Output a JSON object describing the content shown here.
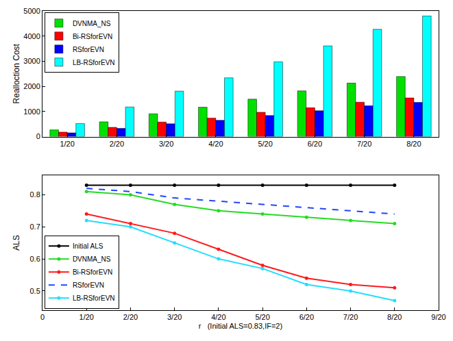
{
  "chart_data": [
    {
      "type": "bar",
      "y_label": "Realloction Cost",
      "categories": [
        "1/20",
        "2/20",
        "3/20",
        "4/20",
        "5/20",
        "6/20",
        "7/20",
        "8/20"
      ],
      "series": [
        {
          "name": "DVNMA_NS",
          "color": "#00e000",
          "values": [
            270,
            590,
            910,
            1170,
            1490,
            1820,
            2130,
            2390
          ]
        },
        {
          "name": "Bi-RSforEVN",
          "color": "#ff0000",
          "values": [
            180,
            370,
            580,
            740,
            970,
            1150,
            1370,
            1540
          ]
        },
        {
          "name": "RSforEVN",
          "color": "#0000ff",
          "values": [
            150,
            330,
            510,
            650,
            840,
            1030,
            1230,
            1360
          ]
        },
        {
          "name": "LB-RSforEVN",
          "color": "#00ffff",
          "values": [
            520,
            1180,
            1810,
            2340,
            2980,
            3610,
            4270,
            4800
          ]
        }
      ],
      "ylim": [
        0,
        5000
      ],
      "yticks": [
        0,
        1000,
        2000,
        3000,
        4000,
        5000
      ],
      "grid": false,
      "legend": "upper left"
    },
    {
      "type": "line",
      "x_label": "r   (Initial ALS=0.83,IF=2)",
      "y_label": "ALS",
      "x": [
        0.05,
        0.1,
        0.15,
        0.2,
        0.25,
        0.3,
        0.35,
        0.4
      ],
      "series": [
        {
          "name": "Initial ALS",
          "color": "#000000",
          "marker": "circle",
          "line_style": "solid",
          "values": [
            0.83,
            0.83,
            0.83,
            0.83,
            0.83,
            0.83,
            0.83,
            0.83
          ]
        },
        {
          "name": "DVNMA_NS",
          "color": "#22dd22",
          "marker": "circle",
          "line_style": "solid",
          "values": [
            0.81,
            0.8,
            0.77,
            0.75,
            0.74,
            0.73,
            0.72,
            0.71
          ]
        },
        {
          "name": "Bi-RSforEVN",
          "color": "#ff1a1a",
          "marker": "circle",
          "line_style": "solid",
          "values": [
            0.74,
            0.71,
            0.68,
            0.63,
            0.58,
            0.54,
            0.52,
            0.51
          ]
        },
        {
          "name": "RSforEVN",
          "color": "#2244ff",
          "marker": "none",
          "line_style": "dash",
          "values": [
            0.82,
            0.81,
            0.79,
            0.78,
            0.77,
            0.76,
            0.75,
            0.74
          ]
        },
        {
          "name": "LB-RSforEVN",
          "color": "#22ddff",
          "marker": "circle",
          "line_style": "solid",
          "values": [
            0.72,
            0.7,
            0.65,
            0.6,
            0.57,
            0.52,
            0.5,
            0.47
          ]
        }
      ],
      "xlim": [
        0,
        0.45
      ],
      "xticks": [
        0,
        {
          "value": 0.05,
          "label": "1/20"
        },
        {
          "value": 0.1,
          "label": "2/20"
        },
        {
          "value": 0.15,
          "label": "3/20"
        },
        {
          "value": 0.2,
          "label": "4/20"
        },
        {
          "value": 0.25,
          "label": "5/20"
        },
        {
          "value": 0.3,
          "label": "6/20"
        },
        {
          "value": 0.35,
          "label": "7/20"
        },
        {
          "value": 0.4,
          "label": "8/20"
        },
        {
          "value": 0.45,
          "label": "9/20"
        }
      ],
      "ylim": [
        0.44,
        0.86
      ],
      "yticks": [
        0.5,
        0.6,
        0.7,
        0.8
      ],
      "grid": false,
      "legend": "lower left"
    }
  ]
}
